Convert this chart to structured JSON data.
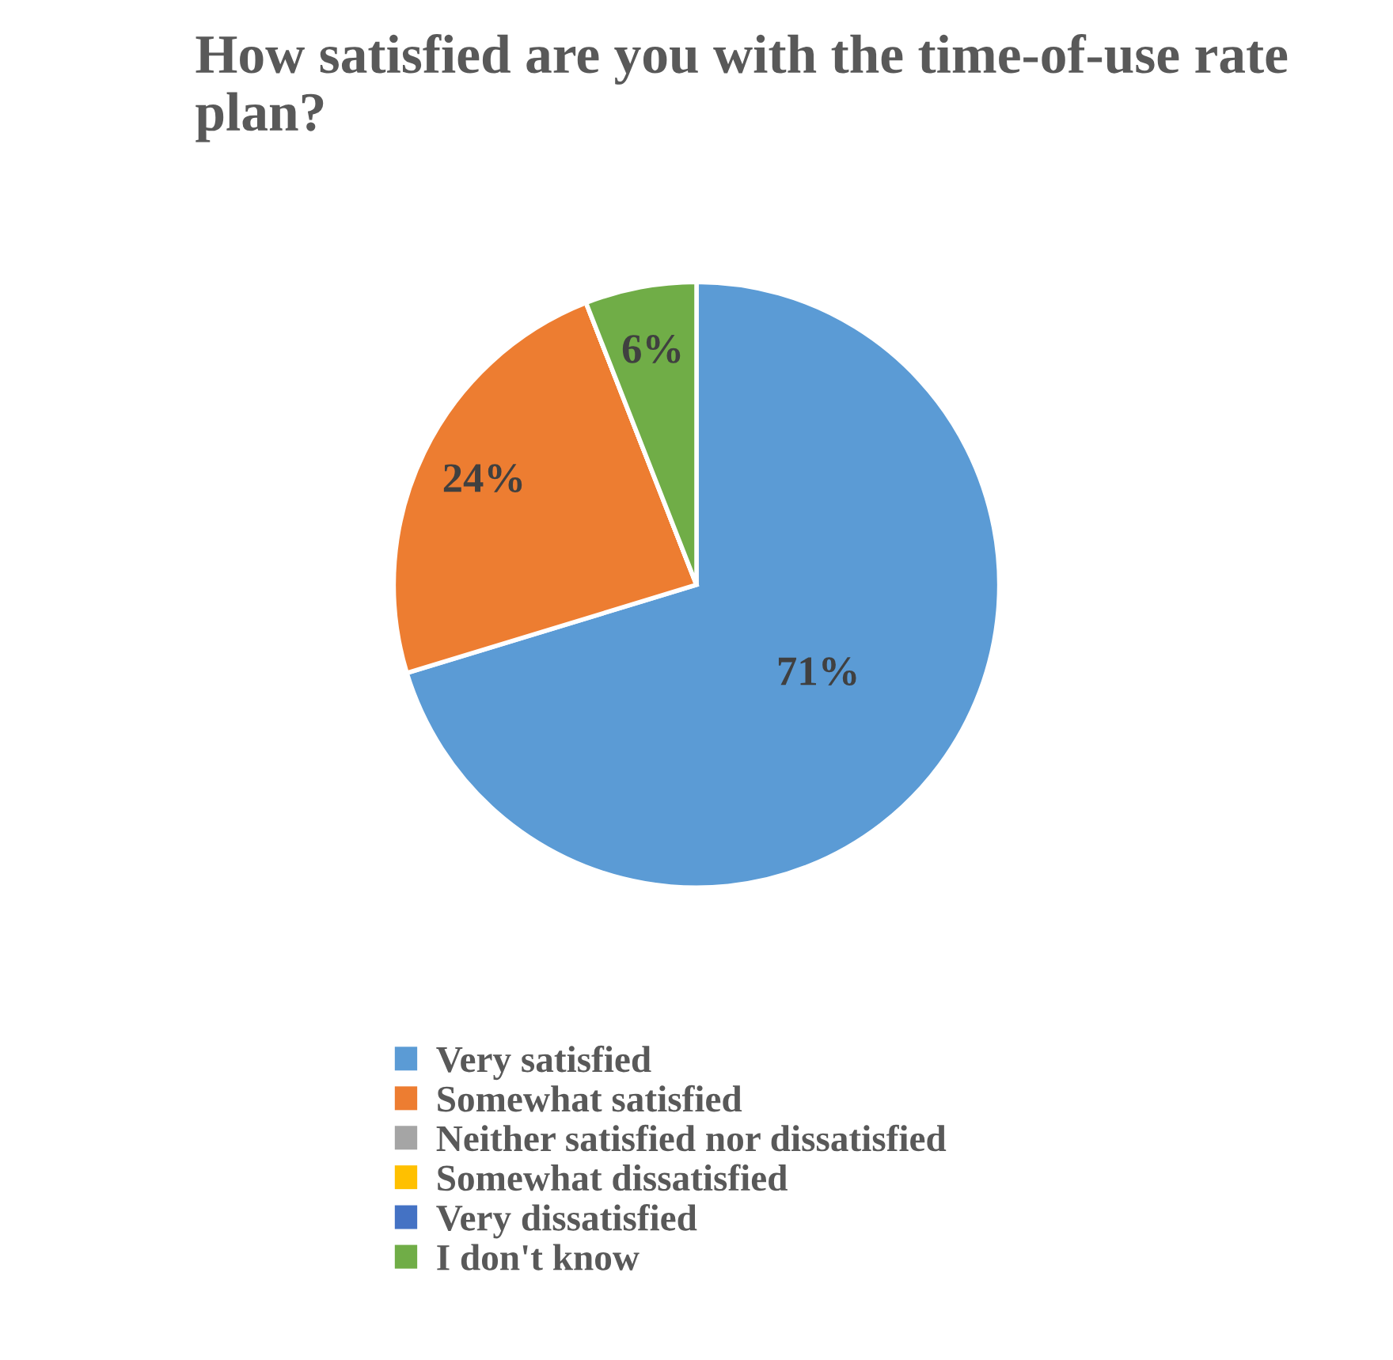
{
  "chart_data": {
    "type": "pie",
    "title": "How satisfied are you with the time-of-use rate plan?",
    "categories": [
      "Very satisfied",
      "Somewhat satisfied",
      "Neither satisfied nor dissatisfied",
      "Somewhat dissatisfied",
      "Very dissatisfied",
      "I don't know"
    ],
    "values": [
      71,
      24,
      0,
      0,
      0,
      6
    ],
    "colors": [
      "#5b9bd5",
      "#ed7d31",
      "#a5a5a5",
      "#ffc000",
      "#4472c4",
      "#70ad47"
    ],
    "value_labels": [
      "71%",
      "24%",
      null,
      null,
      null,
      "6%"
    ],
    "legend": "bottom"
  }
}
